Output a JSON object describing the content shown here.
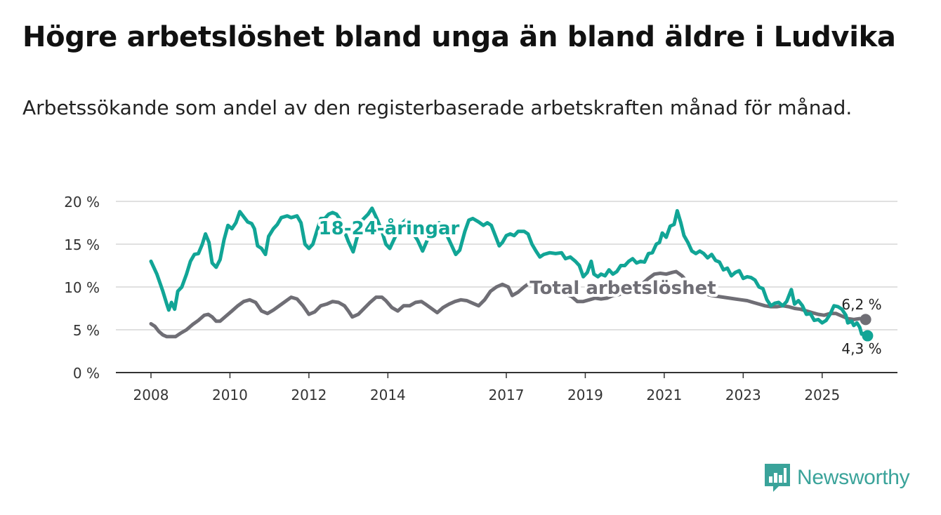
{
  "title": "Högre arbetslöshet bland unga än bland äldre i Ludvika",
  "subtitle": "Arbetssökande som andel av den registerbaserade arbetskraften månad för månad.",
  "brand": {
    "name": "Newsworthy",
    "color": "#3aa39a"
  },
  "chart_data": {
    "type": "line",
    "x_ticks": [
      2008,
      2010,
      2012,
      2014,
      2017,
      2019,
      2021,
      2023,
      2025
    ],
    "y_ticks": [
      0,
      5,
      10,
      15,
      20
    ],
    "y_tick_labels": [
      "0 %",
      "5 %",
      "10 %",
      "15 %",
      "20 %"
    ],
    "ylim": [
      0,
      20
    ],
    "xlim": [
      2007.1,
      2026.75
    ],
    "grid": true,
    "series": [
      {
        "name": "18-24-åringar",
        "label": "18-24-åringar",
        "color": "#11a596",
        "end_label": "4,3 %",
        "points": [
          [
            2008.0,
            13.0
          ],
          [
            2008.15,
            11.5
          ],
          [
            2008.3,
            9.5
          ],
          [
            2008.4,
            8.0
          ],
          [
            2008.45,
            7.3
          ],
          [
            2008.52,
            8.2
          ],
          [
            2008.6,
            7.4
          ],
          [
            2008.68,
            9.5
          ],
          [
            2008.78,
            10.0
          ],
          [
            2008.9,
            11.5
          ],
          [
            2009.0,
            13.0
          ],
          [
            2009.1,
            13.8
          ],
          [
            2009.2,
            13.9
          ],
          [
            2009.3,
            15.0
          ],
          [
            2009.38,
            16.2
          ],
          [
            2009.47,
            15.2
          ],
          [
            2009.55,
            12.8
          ],
          [
            2009.65,
            12.3
          ],
          [
            2009.75,
            13.2
          ],
          [
            2009.85,
            15.5
          ],
          [
            2009.95,
            17.2
          ],
          [
            2010.05,
            16.8
          ],
          [
            2010.15,
            17.5
          ],
          [
            2010.25,
            18.8
          ],
          [
            2010.35,
            18.2
          ],
          [
            2010.45,
            17.6
          ],
          [
            2010.55,
            17.4
          ],
          [
            2010.62,
            16.8
          ],
          [
            2010.7,
            14.8
          ],
          [
            2010.8,
            14.5
          ],
          [
            2010.9,
            13.8
          ],
          [
            2010.98,
            15.9
          ],
          [
            2011.1,
            16.8
          ],
          [
            2011.2,
            17.3
          ],
          [
            2011.3,
            18.1
          ],
          [
            2011.45,
            18.3
          ],
          [
            2011.55,
            18.1
          ],
          [
            2011.7,
            18.3
          ],
          [
            2011.8,
            17.5
          ],
          [
            2011.9,
            15.0
          ],
          [
            2012.0,
            14.5
          ],
          [
            2012.1,
            15.0
          ],
          [
            2012.2,
            16.5
          ],
          [
            2012.3,
            18.0
          ],
          [
            2012.4,
            18.0
          ],
          [
            2012.5,
            18.5
          ],
          [
            2012.6,
            18.7
          ],
          [
            2012.7,
            18.5
          ],
          [
            2012.8,
            17.8
          ],
          [
            2012.9,
            16.5
          ],
          [
            2013.0,
            15.3
          ],
          [
            2013.12,
            14.1
          ],
          [
            2013.22,
            15.8
          ],
          [
            2013.35,
            17.8
          ],
          [
            2013.5,
            18.5
          ],
          [
            2013.6,
            19.2
          ],
          [
            2013.72,
            18.0
          ],
          [
            2013.85,
            16.5
          ],
          [
            2013.95,
            15.0
          ],
          [
            2014.05,
            14.5
          ],
          [
            2014.18,
            15.8
          ],
          [
            2014.3,
            17.2
          ],
          [
            2014.45,
            17.8
          ],
          [
            2014.6,
            16.5
          ],
          [
            2014.75,
            15.5
          ],
          [
            2014.88,
            14.2
          ],
          [
            2015.0,
            15.5
          ],
          [
            2015.15,
            17.0
          ],
          [
            2015.3,
            17.5
          ],
          [
            2015.45,
            16.5
          ],
          [
            2015.6,
            15.0
          ],
          [
            2015.72,
            13.8
          ],
          [
            2015.82,
            14.3
          ],
          [
            2015.95,
            16.5
          ],
          [
            2016.05,
            17.8
          ],
          [
            2016.15,
            18.0
          ],
          [
            2016.3,
            17.6
          ],
          [
            2016.42,
            17.2
          ],
          [
            2016.52,
            17.5
          ],
          [
            2016.62,
            17.2
          ],
          [
            2016.72,
            16.0
          ],
          [
            2016.82,
            14.8
          ],
          [
            2016.9,
            15.2
          ],
          [
            2017.0,
            16.0
          ],
          [
            2017.1,
            16.2
          ],
          [
            2017.2,
            16.0
          ],
          [
            2017.3,
            16.5
          ],
          [
            2017.45,
            16.5
          ],
          [
            2017.55,
            16.2
          ],
          [
            2017.65,
            15.0
          ],
          [
            2017.75,
            14.2
          ],
          [
            2017.85,
            13.5
          ],
          [
            2017.95,
            13.8
          ],
          [
            2018.1,
            14.0
          ],
          [
            2018.25,
            13.9
          ],
          [
            2018.4,
            14.0
          ],
          [
            2018.5,
            13.3
          ],
          [
            2018.62,
            13.5
          ],
          [
            2018.75,
            13.0
          ],
          [
            2018.85,
            12.5
          ],
          [
            2018.95,
            11.2
          ],
          [
            2019.05,
            11.7
          ],
          [
            2019.15,
            13.0
          ],
          [
            2019.22,
            11.5
          ],
          [
            2019.32,
            11.2
          ],
          [
            2019.4,
            11.5
          ],
          [
            2019.5,
            11.3
          ],
          [
            2019.6,
            12.0
          ],
          [
            2019.7,
            11.5
          ],
          [
            2019.8,
            11.8
          ],
          [
            2019.9,
            12.5
          ],
          [
            2020.0,
            12.5
          ],
          [
            2020.1,
            13.0
          ],
          [
            2020.2,
            13.3
          ],
          [
            2020.3,
            12.8
          ],
          [
            2020.4,
            13.0
          ],
          [
            2020.5,
            12.9
          ],
          [
            2020.6,
            13.9
          ],
          [
            2020.7,
            14.0
          ],
          [
            2020.8,
            15.0
          ],
          [
            2020.88,
            15.2
          ],
          [
            2020.95,
            16.3
          ],
          [
            2021.05,
            15.8
          ],
          [
            2021.15,
            17.1
          ],
          [
            2021.25,
            17.3
          ],
          [
            2021.33,
            18.9
          ],
          [
            2021.42,
            17.5
          ],
          [
            2021.5,
            16.0
          ],
          [
            2021.6,
            15.2
          ],
          [
            2021.7,
            14.2
          ],
          [
            2021.8,
            13.9
          ],
          [
            2021.9,
            14.2
          ],
          [
            2022.0,
            13.9
          ],
          [
            2022.1,
            13.4
          ],
          [
            2022.2,
            13.8
          ],
          [
            2022.3,
            13.1
          ],
          [
            2022.4,
            12.9
          ],
          [
            2022.5,
            12.0
          ],
          [
            2022.6,
            12.2
          ],
          [
            2022.7,
            11.3
          ],
          [
            2022.8,
            11.7
          ],
          [
            2022.9,
            11.9
          ],
          [
            2023.0,
            11.0
          ],
          [
            2023.1,
            11.2
          ],
          [
            2023.2,
            11.1
          ],
          [
            2023.3,
            10.8
          ],
          [
            2023.4,
            10.0
          ],
          [
            2023.5,
            9.8
          ],
          [
            2023.6,
            8.5
          ],
          [
            2023.7,
            7.8
          ],
          [
            2023.8,
            8.1
          ],
          [
            2023.9,
            8.2
          ],
          [
            2024.0,
            7.8
          ],
          [
            2024.1,
            8.3
          ],
          [
            2024.22,
            9.7
          ],
          [
            2024.3,
            8.0
          ],
          [
            2024.4,
            8.4
          ],
          [
            2024.5,
            7.8
          ],
          [
            2024.6,
            6.8
          ],
          [
            2024.7,
            6.9
          ],
          [
            2024.8,
            6.1
          ],
          [
            2024.9,
            6.2
          ],
          [
            2025.0,
            5.8
          ],
          [
            2025.1,
            6.1
          ],
          [
            2025.2,
            6.8
          ],
          [
            2025.3,
            7.8
          ],
          [
            2025.4,
            7.7
          ],
          [
            2025.5,
            7.4
          ],
          [
            2025.6,
            6.7
          ],
          [
            2025.65,
            5.8
          ],
          [
            2025.75,
            6.0
          ],
          [
            2025.8,
            5.5
          ],
          [
            2025.88,
            5.8
          ],
          [
            2025.95,
            5.3
          ],
          [
            2026.0,
            4.5
          ],
          [
            2026.1,
            4.6
          ],
          [
            2026.15,
            4.3
          ]
        ]
      },
      {
        "name": "Total arbetslöshet",
        "label": "Total arbetslöshet",
        "color": "#6f6e75",
        "end_label": "6,2 %",
        "points": [
          [
            2008.0,
            5.7
          ],
          [
            2008.1,
            5.4
          ],
          [
            2008.2,
            4.8
          ],
          [
            2008.3,
            4.4
          ],
          [
            2008.4,
            4.2
          ],
          [
            2008.5,
            4.2
          ],
          [
            2008.62,
            4.2
          ],
          [
            2008.75,
            4.6
          ],
          [
            2008.9,
            5.0
          ],
          [
            2009.05,
            5.6
          ],
          [
            2009.2,
            6.1
          ],
          [
            2009.35,
            6.7
          ],
          [
            2009.45,
            6.8
          ],
          [
            2009.55,
            6.5
          ],
          [
            2009.65,
            6.0
          ],
          [
            2009.75,
            6.0
          ],
          [
            2009.9,
            6.6
          ],
          [
            2010.05,
            7.2
          ],
          [
            2010.2,
            7.8
          ],
          [
            2010.35,
            8.3
          ],
          [
            2010.5,
            8.5
          ],
          [
            2010.65,
            8.2
          ],
          [
            2010.8,
            7.2
          ],
          [
            2010.95,
            6.9
          ],
          [
            2011.1,
            7.3
          ],
          [
            2011.25,
            7.8
          ],
          [
            2011.4,
            8.3
          ],
          [
            2011.55,
            8.8
          ],
          [
            2011.7,
            8.6
          ],
          [
            2011.85,
            7.8
          ],
          [
            2012.0,
            6.8
          ],
          [
            2012.15,
            7.1
          ],
          [
            2012.3,
            7.8
          ],
          [
            2012.45,
            8.0
          ],
          [
            2012.6,
            8.3
          ],
          [
            2012.75,
            8.2
          ],
          [
            2012.9,
            7.8
          ],
          [
            2013.0,
            7.2
          ],
          [
            2013.1,
            6.5
          ],
          [
            2013.25,
            6.8
          ],
          [
            2013.4,
            7.5
          ],
          [
            2013.55,
            8.2
          ],
          [
            2013.7,
            8.8
          ],
          [
            2013.85,
            8.8
          ],
          [
            2013.95,
            8.4
          ],
          [
            2014.1,
            7.6
          ],
          [
            2014.25,
            7.2
          ],
          [
            2014.4,
            7.8
          ],
          [
            2014.55,
            7.8
          ],
          [
            2014.7,
            8.2
          ],
          [
            2014.85,
            8.3
          ],
          [
            2014.95,
            8.0
          ],
          [
            2015.1,
            7.5
          ],
          [
            2015.25,
            7.0
          ],
          [
            2015.4,
            7.6
          ],
          [
            2015.55,
            8.0
          ],
          [
            2015.7,
            8.3
          ],
          [
            2015.85,
            8.5
          ],
          [
            2016.0,
            8.4
          ],
          [
            2016.15,
            8.1
          ],
          [
            2016.3,
            7.8
          ],
          [
            2016.45,
            8.5
          ],
          [
            2016.6,
            9.5
          ],
          [
            2016.75,
            10.0
          ],
          [
            2016.9,
            10.3
          ],
          [
            2017.05,
            10.0
          ],
          [
            2017.15,
            9.0
          ],
          [
            2017.3,
            9.4
          ],
          [
            2017.45,
            10.0
          ],
          [
            2017.6,
            10.5
          ],
          [
            2017.75,
            10.7
          ],
          [
            2017.9,
            10.2
          ],
          [
            2018.05,
            9.6
          ],
          [
            2018.2,
            9.5
          ],
          [
            2018.35,
            9.3
          ],
          [
            2018.5,
            9.2
          ],
          [
            2018.65,
            8.9
          ],
          [
            2018.8,
            8.3
          ],
          [
            2018.95,
            8.3
          ],
          [
            2019.1,
            8.5
          ],
          [
            2019.25,
            8.7
          ],
          [
            2019.4,
            8.6
          ],
          [
            2019.55,
            8.7
          ],
          [
            2019.7,
            9.0
          ],
          [
            2019.85,
            9.1
          ],
          [
            2020.0,
            9.4
          ],
          [
            2020.15,
            9.8
          ],
          [
            2020.3,
            10.2
          ],
          [
            2020.45,
            10.4
          ],
          [
            2020.6,
            11.0
          ],
          [
            2020.75,
            11.5
          ],
          [
            2020.9,
            11.6
          ],
          [
            2021.05,
            11.5
          ],
          [
            2021.2,
            11.7
          ],
          [
            2021.3,
            11.8
          ],
          [
            2021.45,
            11.3
          ],
          [
            2021.6,
            10.5
          ],
          [
            2021.75,
            9.7
          ],
          [
            2021.9,
            9.5
          ],
          [
            2022.05,
            9.2
          ],
          [
            2022.2,
            9.0
          ],
          [
            2022.35,
            8.9
          ],
          [
            2022.5,
            8.8
          ],
          [
            2022.65,
            8.7
          ],
          [
            2022.8,
            8.6
          ],
          [
            2022.95,
            8.5
          ],
          [
            2023.1,
            8.4
          ],
          [
            2023.25,
            8.2
          ],
          [
            2023.4,
            8.0
          ],
          [
            2023.55,
            7.8
          ],
          [
            2023.7,
            7.7
          ],
          [
            2023.85,
            7.7
          ],
          [
            2024.0,
            7.8
          ],
          [
            2024.15,
            7.7
          ],
          [
            2024.3,
            7.5
          ],
          [
            2024.45,
            7.4
          ],
          [
            2024.6,
            7.2
          ],
          [
            2024.75,
            7.0
          ],
          [
            2024.9,
            6.8
          ],
          [
            2025.05,
            6.7
          ],
          [
            2025.2,
            6.9
          ],
          [
            2025.35,
            6.9
          ],
          [
            2025.5,
            6.6
          ],
          [
            2025.65,
            6.3
          ],
          [
            2025.8,
            6.2
          ],
          [
            2025.95,
            6.3
          ],
          [
            2026.1,
            6.2
          ]
        ]
      }
    ]
  }
}
